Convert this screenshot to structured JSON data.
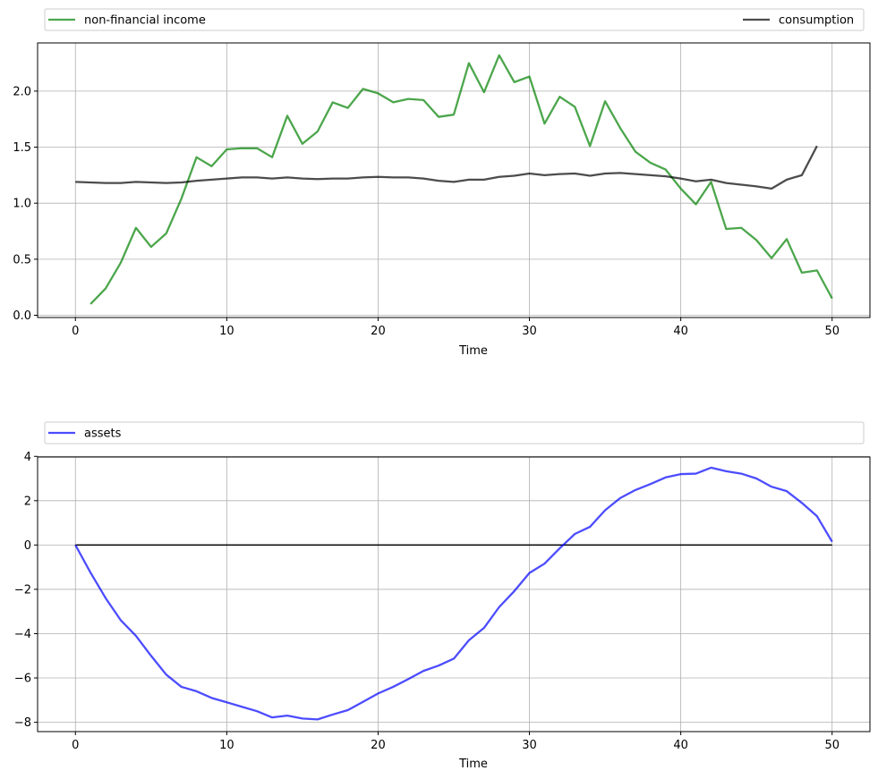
{
  "chart_data": [
    {
      "type": "line",
      "xlabel": "Time",
      "ylabel": "",
      "xlim": [
        -2.5,
        52.5
      ],
      "ylim": [
        -0.02,
        2.43
      ],
      "xticks": [
        0,
        10,
        20,
        30,
        40,
        50
      ],
      "yticks": [
        0.0,
        0.5,
        1.0,
        1.5,
        2.0
      ],
      "ytick_labels": [
        "0.0",
        "0.5",
        "1.0",
        "1.5",
        "2.0"
      ],
      "grid": true,
      "legend_placement": "above plot, expanded across full width",
      "series": [
        {
          "name": "non-financial income",
          "color": "#008000",
          "x": [
            1,
            2,
            3,
            4,
            5,
            6,
            7,
            8,
            9,
            10,
            11,
            12,
            13,
            14,
            15,
            16,
            17,
            18,
            19,
            20,
            21,
            22,
            23,
            24,
            25,
            26,
            27,
            28,
            29,
            30,
            31,
            32,
            33,
            34,
            35,
            36,
            37,
            38,
            39,
            40,
            41,
            42,
            43,
            44,
            45,
            46,
            47,
            48,
            49,
            50
          ],
          "values": [
            0.1,
            0.24,
            0.47,
            0.78,
            0.61,
            0.73,
            1.04,
            1.41,
            1.33,
            1.48,
            1.49,
            1.49,
            1.41,
            1.78,
            1.53,
            1.64,
            1.9,
            1.85,
            2.02,
            1.98,
            1.9,
            1.93,
            1.92,
            1.77,
            1.79,
            2.25,
            1.99,
            2.32,
            2.08,
            2.13,
            1.71,
            1.95,
            1.86,
            1.51,
            1.91,
            1.67,
            1.46,
            1.36,
            1.3,
            1.13,
            0.99,
            1.19,
            0.77,
            0.78,
            0.67,
            0.51,
            0.68,
            0.38,
            0.4,
            0.15
          ]
        },
        {
          "name": "consumption",
          "color": "#000000",
          "x": [
            0,
            1,
            2,
            3,
            4,
            5,
            6,
            7,
            8,
            9,
            10,
            11,
            12,
            13,
            14,
            15,
            16,
            17,
            18,
            19,
            20,
            21,
            22,
            23,
            24,
            25,
            26,
            27,
            28,
            29,
            30,
            31,
            32,
            33,
            34,
            35,
            36,
            37,
            38,
            39,
            40,
            41,
            42,
            43,
            44,
            45,
            46,
            47,
            48,
            49
          ],
          "values": [
            1.19,
            1.185,
            1.18,
            1.18,
            1.19,
            1.185,
            1.18,
            1.185,
            1.2,
            1.21,
            1.22,
            1.23,
            1.23,
            1.22,
            1.23,
            1.22,
            1.215,
            1.22,
            1.22,
            1.23,
            1.235,
            1.23,
            1.23,
            1.22,
            1.2,
            1.19,
            1.21,
            1.21,
            1.235,
            1.245,
            1.265,
            1.25,
            1.26,
            1.265,
            1.245,
            1.265,
            1.27,
            1.26,
            1.25,
            1.24,
            1.22,
            1.195,
            1.21,
            1.18,
            1.165,
            1.15,
            1.13,
            1.21,
            1.25,
            1.51
          ]
        }
      ]
    },
    {
      "type": "line",
      "xlabel": "Time",
      "ylabel": "",
      "xlim": [
        -2.5,
        52.5
      ],
      "ylim": [
        -8.42,
        3.97
      ],
      "xticks": [
        0,
        10,
        20,
        30,
        40,
        50
      ],
      "yticks": [
        -8,
        -6,
        -4,
        -2,
        0,
        2,
        4
      ],
      "ytick_labels": [
        "−8",
        "−6",
        "−4",
        "−2",
        "0",
        "2",
        "4"
      ],
      "grid": true,
      "legend_placement": "above plot, expanded across full width",
      "zero_line": true,
      "series": [
        {
          "name": "assets",
          "color": "#0000ff",
          "x": [
            0,
            1,
            2,
            3,
            4,
            5,
            6,
            7,
            8,
            9,
            10,
            11,
            12,
            13,
            14,
            15,
            16,
            17,
            18,
            19,
            20,
            21,
            22,
            23,
            24,
            25,
            26,
            27,
            28,
            29,
            30,
            31,
            32,
            33,
            34,
            35,
            36,
            37,
            38,
            39,
            40,
            41,
            42,
            43,
            44,
            45,
            46,
            47,
            48,
            49,
            50
          ],
          "values": [
            0.0,
            -1.25,
            -2.4,
            -3.4,
            -4.1,
            -5.0,
            -5.85,
            -6.4,
            -6.6,
            -6.9,
            -7.1,
            -7.3,
            -7.5,
            -7.78,
            -7.7,
            -7.83,
            -7.87,
            -7.65,
            -7.45,
            -7.08,
            -6.7,
            -6.4,
            -6.05,
            -5.68,
            -5.44,
            -5.13,
            -4.3,
            -3.74,
            -2.8,
            -2.08,
            -1.26,
            -0.84,
            -0.15,
            0.5,
            0.82,
            1.57,
            2.12,
            2.48,
            2.75,
            3.05,
            3.2,
            3.22,
            3.49,
            3.33,
            3.22,
            3.0,
            2.63,
            2.43,
            1.9,
            1.3,
            0.15
          ]
        }
      ]
    }
  ]
}
